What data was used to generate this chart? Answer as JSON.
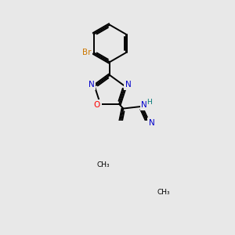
{
  "background_color": "#e8e8e8",
  "atom_colors": {
    "C": "#000000",
    "N": "#0000cc",
    "O": "#ff0000",
    "Br": "#cc7700",
    "H": "#007777"
  },
  "bond_color": "#000000",
  "bond_width": 1.4,
  "dbo": 0.055
}
